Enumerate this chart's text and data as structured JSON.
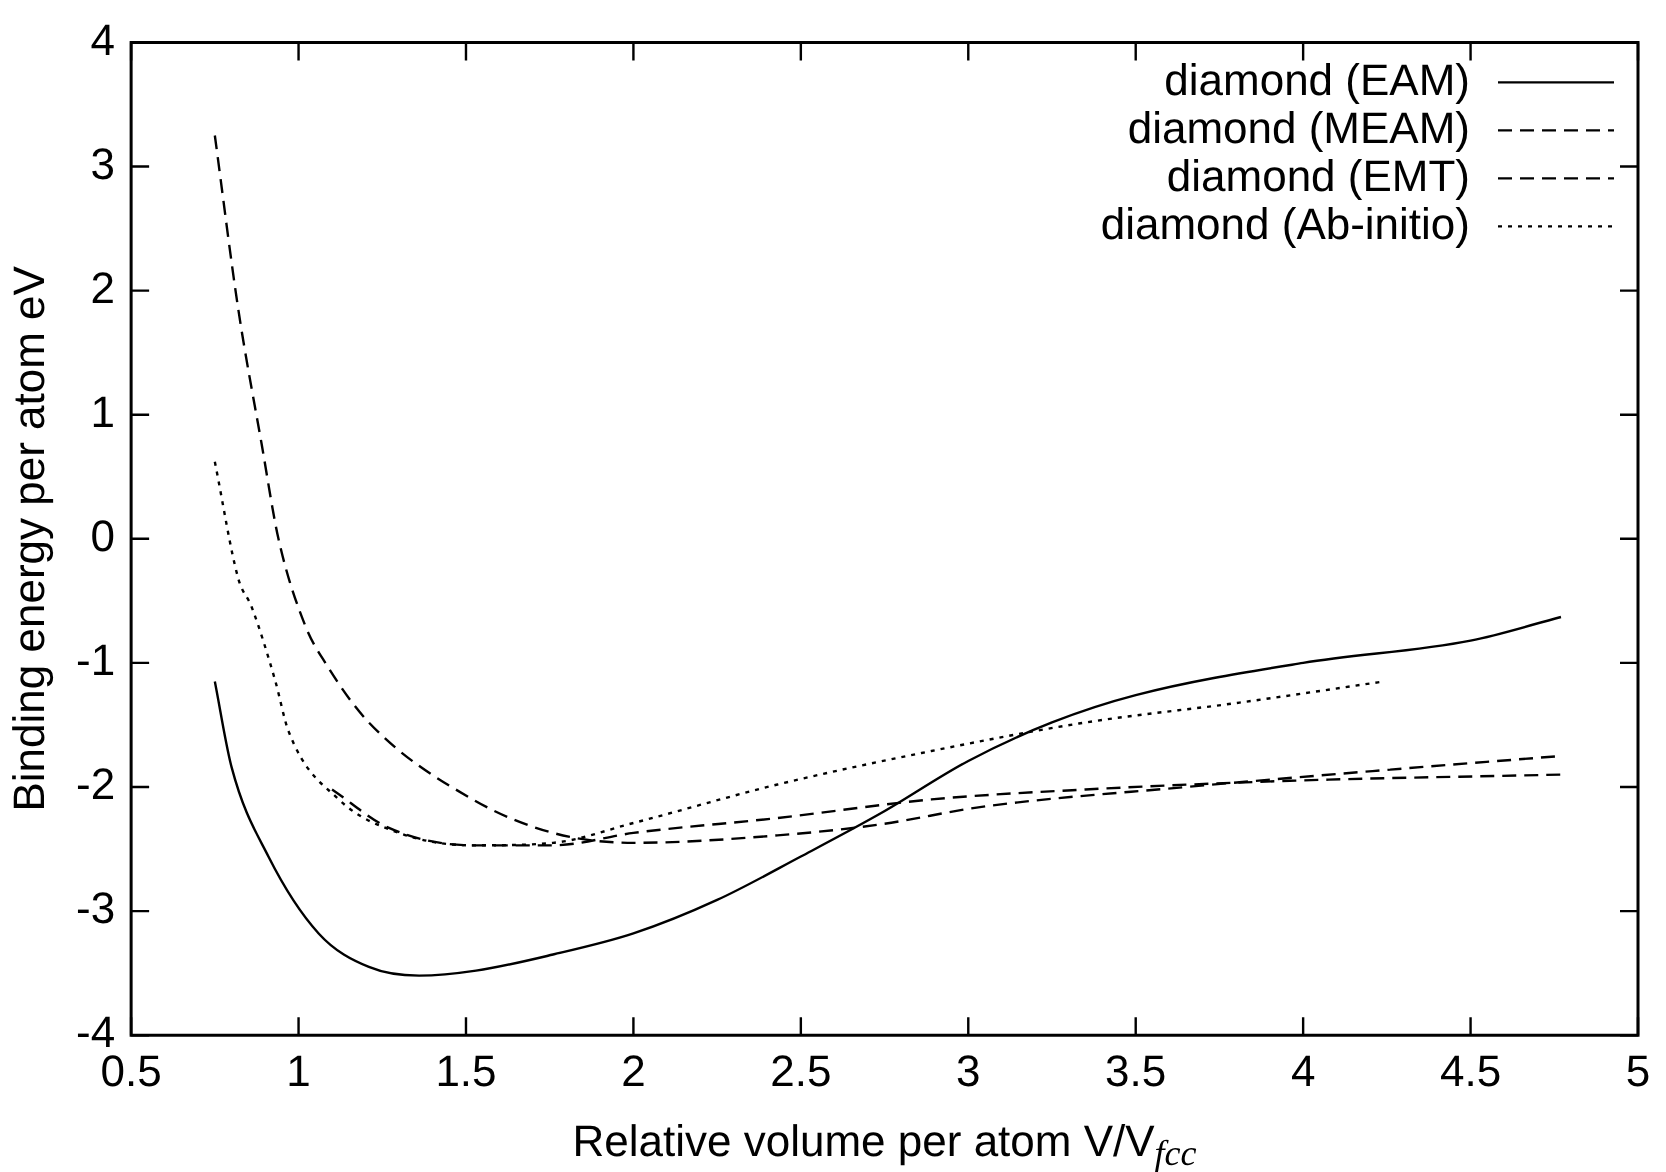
{
  "chart_data": {
    "type": "line",
    "xlabel": "Relative volume per atom V/V$_{fcc}$",
    "ylabel": "Binding energy per atom eV",
    "xlim": [
      0.5,
      5
    ],
    "xticks": [
      0.5,
      1,
      1.5,
      2,
      2.5,
      3,
      3.5,
      4,
      4.5,
      5
    ],
    "ylim": [
      -4,
      4
    ],
    "yticks": [
      -4,
      -3,
      -2,
      -1,
      0,
      1,
      2,
      3,
      4
    ],
    "grid": false,
    "legend": "top right",
    "marker": "none",
    "series": [
      {
        "name": "diamond (EAM)",
        "color": "#000000",
        "line_style": "solid",
        "x": [
          0.75,
          0.8,
          0.91,
          1.06,
          1.21,
          1.36,
          1.53,
          1.76,
          2.0,
          2.25,
          2.5,
          2.74,
          3.0,
          3.25,
          3.5,
          4.0,
          4.5,
          4.77
        ],
        "values": [
          -1.15,
          -1.84,
          -2.56,
          -3.18,
          -3.45,
          -3.52,
          -3.48,
          -3.35,
          -3.18,
          -2.91,
          -2.56,
          -2.21,
          -1.79,
          -1.48,
          -1.26,
          -1.0,
          -0.82,
          -0.63
        ]
      },
      {
        "name": "diamond (MEAM)",
        "color": "#000000",
        "line_style": "dashed",
        "x": [
          0.75,
          0.82,
          0.89,
          0.94,
          1.02,
          1.08,
          1.21,
          1.52,
          1.76,
          2.0,
          2.43,
          2.74,
          3.04,
          3.65,
          4.26,
          4.77
        ],
        "values": [
          3.25,
          1.85,
          0.76,
          0.0,
          -0.7,
          -1.0,
          -1.48,
          -2.1,
          -2.37,
          -2.45,
          -2.39,
          -2.3,
          -2.16,
          -2.0,
          -1.86,
          -1.75
        ]
      },
      {
        "name": "diamond (EMT)",
        "color": "#000000",
        "line_style": "dashed",
        "x": [
          1.1,
          1.27,
          1.52,
          1.76,
          2.0,
          2.43,
          2.89,
          3.35,
          3.96,
          4.77
        ],
        "values": [
          -2.02,
          -2.33,
          -2.47,
          -2.47,
          -2.37,
          -2.25,
          -2.1,
          -2.02,
          -1.95,
          -1.9
        ]
      },
      {
        "name": "diamond (Ab-initio)",
        "color": "#000000",
        "line_style": "dotted",
        "x": [
          0.75,
          0.82,
          0.86,
          0.93,
          0.97,
          1.12,
          1.3,
          1.52,
          1.76,
          2.0,
          2.43,
          2.89,
          3.35,
          3.81,
          4.24
        ],
        "values": [
          0.62,
          -0.32,
          -0.55,
          -1.14,
          -1.55,
          -2.1,
          -2.37,
          -2.47,
          -2.45,
          -2.29,
          -1.98,
          -1.71,
          -1.48,
          -1.32,
          -1.15
        ]
      }
    ]
  }
}
